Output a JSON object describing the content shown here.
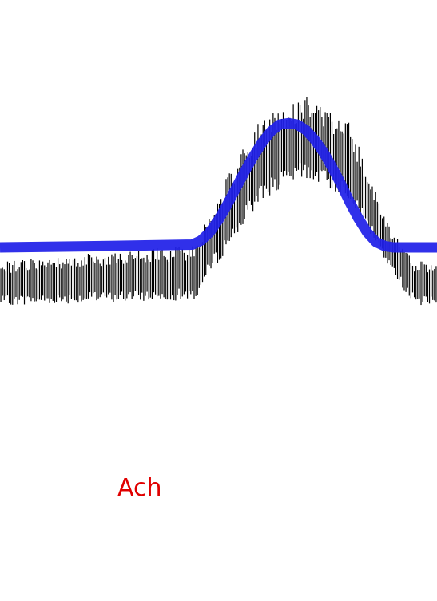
{
  "chart_data": {
    "type": "line",
    "annotation": "Ach",
    "x_range": [
      0,
      100
    ],
    "y_range": [
      -1.0,
      1.3
    ],
    "grid": false,
    "colors": {
      "trace": "#000000",
      "envelope": "#2020e8",
      "annotation": "#e00000"
    },
    "series": [
      {
        "x": [
          0,
          25,
          44,
          46,
          48,
          50,
          52,
          54,
          56,
          58,
          60,
          62,
          64,
          66,
          68,
          70,
          72,
          74,
          76,
          78,
          80,
          82,
          84,
          86,
          88,
          90,
          92,
          94,
          100
        ],
        "y": [
          0,
          0.01,
          0.02,
          0.05,
          0.11,
          0.2,
          0.31,
          0.43,
          0.55,
          0.66,
          0.76,
          0.84,
          0.89,
          0.9,
          0.89,
          0.85,
          0.78,
          0.69,
          0.58,
          0.46,
          0.33,
          0.21,
          0.11,
          0.04,
          0.01,
          0,
          0,
          0,
          0
        ]
      },
      {
        "type": "bursts",
        "count": 260,
        "baseline_low": [
          {
            "x": 0,
            "y": -0.42
          },
          {
            "x": 45,
            "y": -0.38
          },
          {
            "x": 48,
            "y": -0.2
          },
          {
            "x": 60,
            "y": 0.35
          },
          {
            "x": 70,
            "y": 0.5
          },
          {
            "x": 80,
            "y": 0.35
          },
          {
            "x": 90,
            "y": -0.2
          },
          {
            "x": 95,
            "y": -0.42
          },
          {
            "x": 100,
            "y": -0.42
          }
        ],
        "peak_high": [
          {
            "x": 0,
            "y": -0.1
          },
          {
            "x": 45,
            "y": 0.02
          },
          {
            "x": 48,
            "y": 0.3
          },
          {
            "x": 60,
            "y": 0.95
          },
          {
            "x": 70,
            "y": 1.1
          },
          {
            "x": 80,
            "y": 0.9
          },
          {
            "x": 90,
            "y": 0.1
          },
          {
            "x": 95,
            "y": -0.1
          },
          {
            "x": 100,
            "y": -0.1
          }
        ]
      }
    ]
  }
}
